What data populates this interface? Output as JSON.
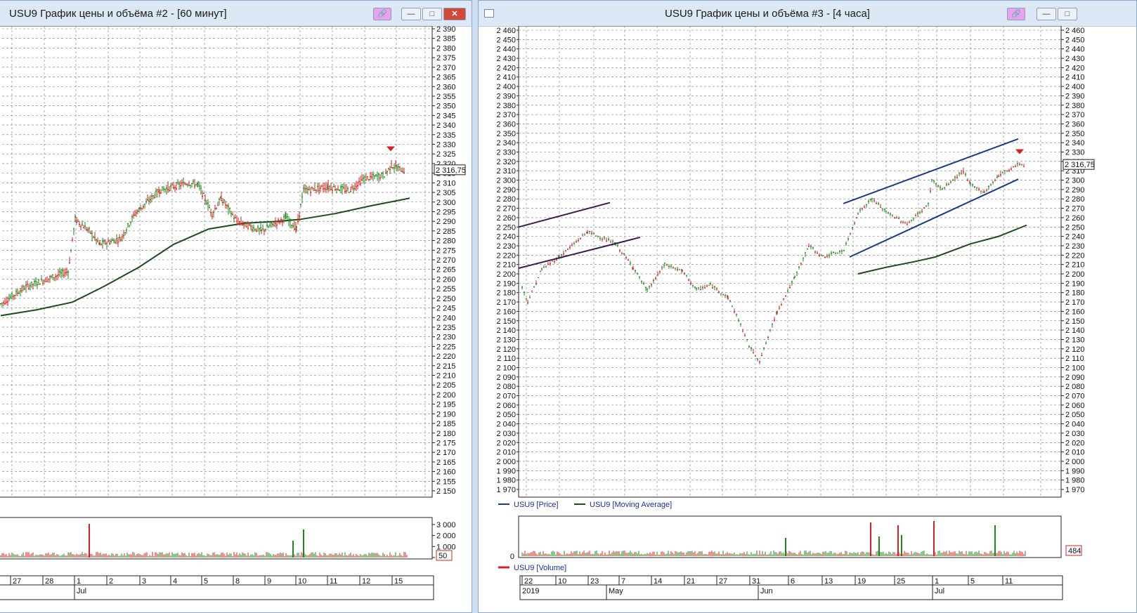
{
  "windows": [
    {
      "title": "USU9 График цены и объёма #2 - [60 минут]",
      "last_price": "2 316,75",
      "volume_last": "50",
      "y_ticks": [
        "2 390",
        "2 385",
        "2 380",
        "2 375",
        "2 370",
        "2 365",
        "2 360",
        "2 355",
        "2 350",
        "2 345",
        "2 340",
        "2 335",
        "2 330",
        "2 325",
        "2 320",
        "2 315",
        "2 310",
        "2 305",
        "2 300",
        "2 295",
        "2 290",
        "2 285",
        "2 280",
        "2 275",
        "2 270",
        "2 265",
        "2 260",
        "2 255",
        "2 250",
        "2 245",
        "2 240",
        "2 235",
        "2 230",
        "2 225",
        "2 220",
        "2 215",
        "2 210",
        "2 205",
        "2 200",
        "2 195",
        "2 190",
        "2 185",
        "2 180",
        "2 175",
        "2 170",
        "2 165",
        "2 160",
        "2 155",
        "2 150"
      ],
      "vol_ticks": [
        "3 000",
        "2 000",
        "1 000",
        "0"
      ],
      "x_days": [
        "27",
        "28",
        "1",
        "2",
        "3",
        "4",
        "5",
        "8",
        "9",
        "10",
        "11",
        "12",
        "15"
      ],
      "x_months": [
        "Jul"
      ]
    },
    {
      "title": "USU9 График цены и объёма #3 - [4 часа]",
      "last_price": "2 316,75",
      "volume_last": "484",
      "y_ticks": [
        "2 460",
        "2 450",
        "2 440",
        "2 430",
        "2 420",
        "2 410",
        "2 400",
        "2 390",
        "2 380",
        "2 370",
        "2 360",
        "2 350",
        "2 340",
        "2 330",
        "2 320",
        "2 310",
        "2 300",
        "2 290",
        "2 280",
        "2 270",
        "2 260",
        "2 250",
        "2 240",
        "2 230",
        "2 220",
        "2 210",
        "2 200",
        "2 190",
        "2 180",
        "2 170",
        "2 160",
        "2 150",
        "2 140",
        "2 130",
        "2 120",
        "2 110",
        "2 100",
        "2 090",
        "2 080",
        "2 070",
        "2 060",
        "2 050",
        "2 040",
        "2 030",
        "2 020",
        "2 010",
        "2 000",
        "1 990",
        "1 980",
        "1 970"
      ],
      "vol_ticks": [
        "0"
      ],
      "x_days": [
        "22",
        "10",
        "23",
        "7",
        "14",
        "21",
        "27",
        "31",
        "6",
        "13",
        "19",
        "25",
        "1",
        "5",
        "11"
      ],
      "x_months": [
        "2019",
        "May",
        "Jun",
        "Jul"
      ],
      "legend": [
        "USU9 [Price]",
        "USU9 [Moving Average]"
      ],
      "volume_legend": "USU9 [Volume]"
    }
  ],
  "colors": {
    "up": "#1b8a1b",
    "down": "#d42020",
    "ma": "#1c4d1c",
    "channel": "#1a3a8a",
    "channel_old": "#3a1a50",
    "grid": "#777777"
  },
  "icons": {
    "link": "link-icon",
    "minimize": "minimize-icon",
    "maximize": "maximize-icon",
    "close": "close-icon"
  }
}
